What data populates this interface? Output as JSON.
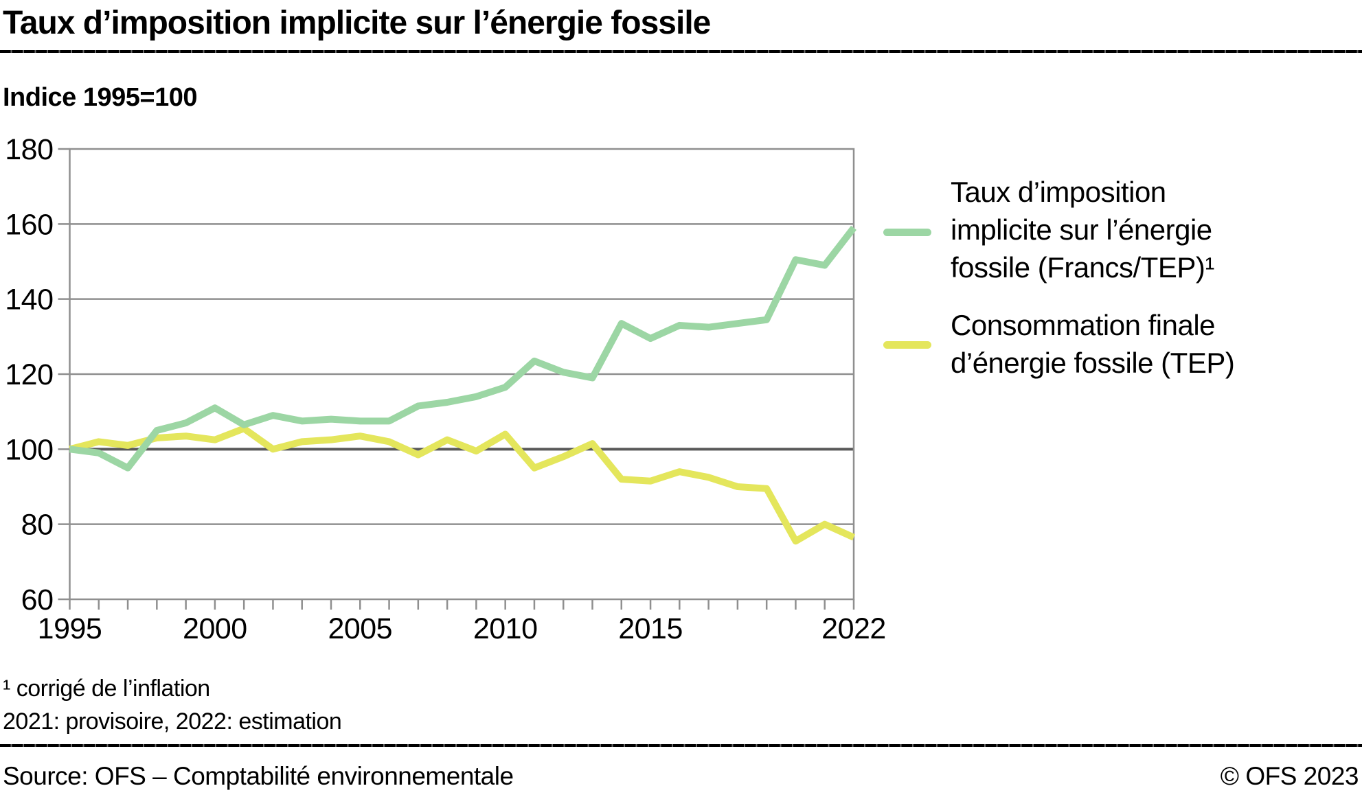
{
  "title": "Taux d’imposition implicite sur l’énergie fossile",
  "subtitle": "Indice 1995=100",
  "chart_data": {
    "type": "line",
    "x": [
      1995,
      1996,
      1997,
      1998,
      1999,
      2000,
      2001,
      2002,
      2003,
      2004,
      2005,
      2006,
      2007,
      2008,
      2009,
      2010,
      2011,
      2012,
      2013,
      2014,
      2015,
      2016,
      2017,
      2018,
      2019,
      2020,
      2021,
      2022
    ],
    "x_labeled_ticks": [
      1995,
      2000,
      2005,
      2010,
      2015,
      2022
    ],
    "ylim": [
      60,
      180
    ],
    "y_ticks": [
      60,
      80,
      100,
      120,
      140,
      160,
      180
    ],
    "baseline_value": 100,
    "grid": true,
    "legend_position": "right",
    "series": [
      {
        "name": "Consommation finale d’énergie fossile (TEP)",
        "color": "#e4e65c",
        "values": [
          100,
          102,
          101,
          103,
          103.5,
          102.5,
          105.5,
          100,
          102,
          102.5,
          103.5,
          102,
          98.5,
          102.5,
          99.5,
          104,
          95,
          98,
          101.5,
          92,
          91.5,
          94,
          92.5,
          90,
          89.5,
          75.5,
          80,
          76.5
        ]
      },
      {
        "name": "Taux d’imposition implicite sur l’énergie fossile (Francs/TEP)¹",
        "color": "#9cd6a4",
        "values": [
          100,
          99,
          95,
          105,
          107,
          111,
          106.5,
          109,
          107.5,
          108,
          107.5,
          107.5,
          111.5,
          112.5,
          114,
          116.5,
          123.5,
          120.5,
          119,
          133.5,
          129.5,
          133,
          132.5,
          133.5,
          134.5,
          150.5,
          149,
          159
        ]
      }
    ]
  },
  "legend": [
    {
      "icon": "line-swatch",
      "color": "#9cd6a4",
      "label_lines": [
        "Taux d’imposition",
        "implicite sur l’énergie",
        "fossile (Francs/TEP)¹"
      ]
    },
    {
      "icon": "line-swatch",
      "color": "#e4e65c",
      "label_lines": [
        "Consommation finale",
        "d’énergie fossile (TEP)"
      ]
    }
  ],
  "footnotes": [
    "¹  corrigé de l’inflation",
    "2021: provisoire, 2022: estimation"
  ],
  "footer": {
    "source": "Source: OFS – Comptabilité environnementale",
    "copyright": "© OFS 2023"
  },
  "colors": {
    "grid": "#8f8f8f",
    "grid_dark": "#595959",
    "text": "#000000"
  }
}
